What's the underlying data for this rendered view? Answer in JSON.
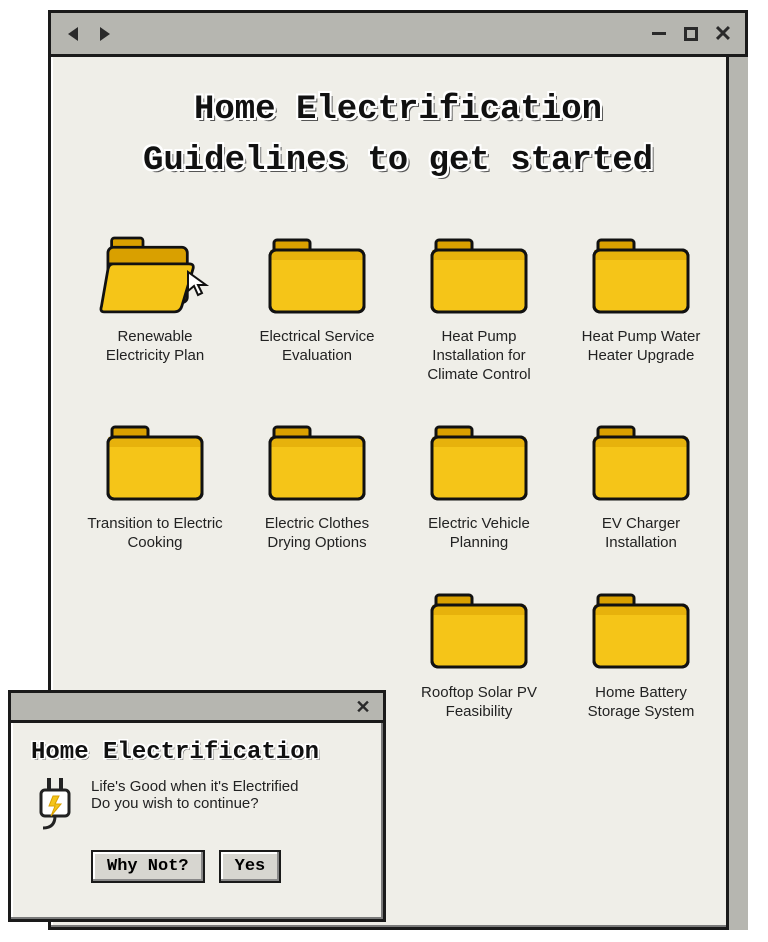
{
  "colors": {
    "window_bg": "#efeee8",
    "titlebar_bg": "#b6b6b0",
    "border": "#1a1a1a",
    "folder_fill": "#f5c518",
    "folder_shadow": "#d9a000",
    "text": "#222222"
  },
  "main_window": {
    "title_line1": "Home Electrification",
    "title_line2": "Guidelines to get started"
  },
  "folders": [
    {
      "label": "Renewable Electricity Plan",
      "open": true
    },
    {
      "label": "Electrical Service Evaluation",
      "open": false
    },
    {
      "label": "Heat Pump Installation for Climate Control",
      "open": false
    },
    {
      "label": "Heat Pump Water Heater Upgrade",
      "open": false
    },
    {
      "label": "Transition to Electric Cooking",
      "open": false
    },
    {
      "label": "Electric Clothes Drying Options",
      "open": false
    },
    {
      "label": "Electric Vehicle Planning",
      "open": false
    },
    {
      "label": "EV Charger Installation",
      "open": false
    },
    {
      "label": "Rooftop Solar PV Feasibility",
      "open": false
    },
    {
      "label": "Home Battery Storage System",
      "open": false
    }
  ],
  "popup": {
    "title": "Home Electrification",
    "body_line1": "Life's Good when it's Electrified",
    "body_line2": "Do you wish to continue?",
    "buttons": {
      "primary": "Why Not?",
      "secondary": "Yes"
    }
  }
}
